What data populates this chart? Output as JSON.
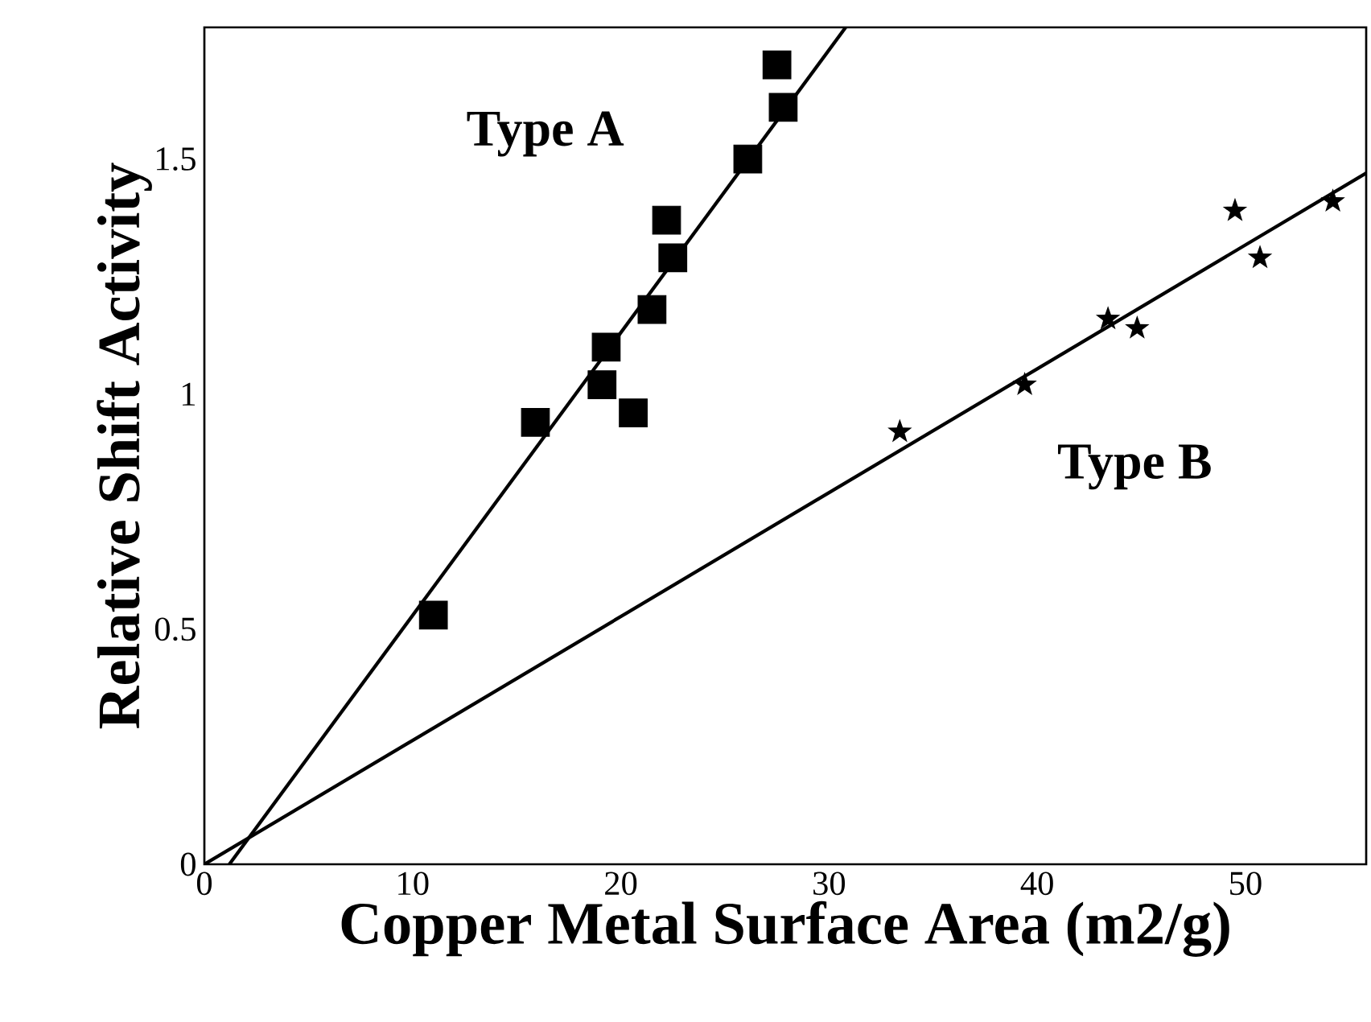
{
  "chart_data": {
    "type": "scatter",
    "xlabel": "Copper Metal Surface Area (m2/g)",
    "ylabel": "Relative Shift Activity",
    "xlim": [
      0,
      55.8
    ],
    "ylim": [
      0,
      1.78
    ],
    "xticks": [
      0,
      10,
      20,
      30,
      40,
      50
    ],
    "yticks": [
      0,
      {
        "value": 0.5,
        "label": "0.5"
      },
      1,
      {
        "value": 1.5,
        "label": "1.5"
      }
    ],
    "grid": false,
    "series": [
      {
        "name": "Type A",
        "marker": "square",
        "color": "#000000",
        "x": [
          11.0,
          15.9,
          19.1,
          19.3,
          20.6,
          21.5,
          22.2,
          22.5,
          26.1,
          27.5,
          27.8
        ],
        "values": [
          0.53,
          0.94,
          1.02,
          1.1,
          0.96,
          1.18,
          1.37,
          1.29,
          1.5,
          1.7,
          1.61
        ]
      },
      {
        "type": "line",
        "marker": "none",
        "line_style": "solid",
        "color": "#000000",
        "x": [
          1.2,
          30.8
        ],
        "values": [
          0,
          1.78
        ]
      },
      {
        "name": "Type B",
        "marker": "star",
        "color": "#000000",
        "x": [
          33.4,
          39.4,
          43.4,
          44.8,
          49.5,
          50.7,
          54.2
        ],
        "values": [
          0.92,
          1.02,
          1.16,
          1.14,
          1.39,
          1.29,
          1.41
        ]
      },
      {
        "type": "line",
        "marker": "none",
        "line_style": "solid",
        "color": "#000000",
        "x": [
          0,
          55.8
        ],
        "values": [
          0,
          1.47
        ]
      }
    ]
  }
}
